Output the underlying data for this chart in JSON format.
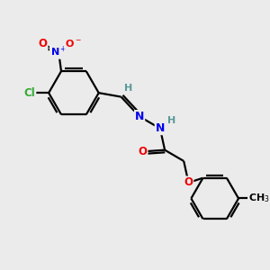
{
  "background_color": "#ebebeb",
  "atom_colors": {
    "C": "#000000",
    "H": "#5a9999",
    "N": "#0000ee",
    "O": "#ee0000",
    "Cl": "#33aa33"
  },
  "bond_color": "#000000",
  "bond_width": 1.6,
  "figsize": [
    3.0,
    3.0
  ],
  "dpi": 100
}
